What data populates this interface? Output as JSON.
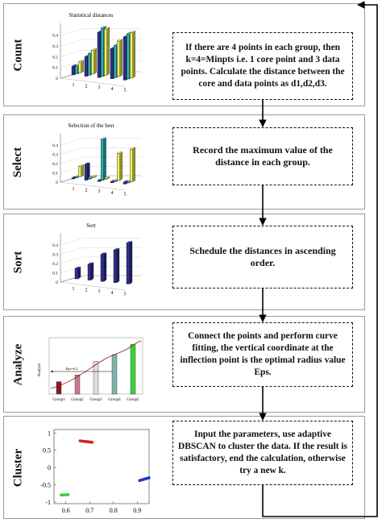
{
  "steps": [
    {
      "label": "Count",
      "chart_title": "Statistical distances",
      "text": "If there are 4 points in each group, then k=4=Minpts i.e. 1 core point and 3 data points. Calculate the distance between the core and data points as d1,d2,d3."
    },
    {
      "label": "Select",
      "chart_title": "Selection of the best",
      "text": "Record the maximum value of the distance in each group."
    },
    {
      "label": "Sort",
      "chart_title": "Sort",
      "text": "Schedule the distances in ascending order."
    },
    {
      "label": "Analyze",
      "text": "Connect the points and perform curve fitting, the vertical coordinate at the inflection point is the optimal radius value Eps."
    },
    {
      "label": "Cluster",
      "text": "Input the parameters, use adaptive DBSCAN to cluster the data. If the result is satisfactory, end the calculation, otherwise try a new k."
    }
  ],
  "colors": {
    "navy": "#2e2f8f",
    "cyan": "#2ab7b3",
    "yellow": "#f3f05a",
    "red": "#d62020",
    "green": "#36d23a",
    "blue": "#1f35c9",
    "curve": "#8b1a1a"
  },
  "chart_data": [
    {
      "type": "bar",
      "title": "Statistical distances",
      "categories": [
        "1",
        "2",
        "3",
        "4",
        "5"
      ],
      "series": [
        {
          "values": [
            0.08,
            0.18,
            0.42,
            0.28,
            0.4
          ]
        },
        {
          "values": [
            0.07,
            0.2,
            0.45,
            0.3,
            0.42
          ]
        },
        {
          "values": [
            0.1,
            0.22,
            0.43,
            0.33,
            0.42
          ]
        }
      ],
      "yticks": [
        "0",
        "0.1",
        "0.2",
        "0.3",
        "0.4"
      ],
      "ylim": [
        0,
        0.45
      ]
    },
    {
      "type": "bar",
      "title": "Selection of the best",
      "categories": [
        "1",
        "2",
        "3",
        "4",
        "5"
      ],
      "series": [
        {
          "values": [
            0.01,
            0.17,
            0.01,
            0.01,
            0.02
          ]
        },
        {
          "values": [
            0.01,
            0.01,
            0.44,
            0.01,
            0.01
          ]
        },
        {
          "values": [
            0.11,
            0.01,
            0.01,
            0.29,
            0.35
          ]
        }
      ],
      "yticks": [
        "0",
        "0.1",
        "0.2",
        "0.3",
        "0.4"
      ],
      "ylim": [
        0,
        0.45
      ]
    },
    {
      "type": "bar",
      "title": "Sort",
      "categories": [
        "1",
        "2",
        "3",
        "4",
        "5"
      ],
      "values": [
        0.11,
        0.17,
        0.29,
        0.35,
        0.44
      ],
      "yticks": [
        "0",
        "0.1",
        "0.2",
        "0.3",
        "0.4"
      ],
      "ylim": [
        0,
        0.45
      ]
    },
    {
      "type": "bar",
      "categories": [
        "Group1",
        "Group2",
        "Group3",
        "Group4",
        "Group5"
      ],
      "values": [
        0.11,
        0.17,
        0.29,
        0.35,
        0.44
      ],
      "ylabel": "Analyze",
      "annotation": "Eps=0.2",
      "eps": 0.2,
      "ylim": [
        0,
        0.5
      ]
    },
    {
      "type": "scatter",
      "xticks": [
        "0.6",
        "0.7",
        "0.8",
        "0.9"
      ],
      "yticks": [
        "1",
        "0.5",
        "0",
        "-0.5",
        "-1"
      ],
      "xlim": [
        0.55,
        0.95
      ],
      "ylim": [
        -1.05,
        1.1
      ],
      "series": [
        {
          "color": "red",
          "points": [
            [
              0.66,
              0.77
            ],
            [
              0.71,
              0.73
            ]
          ]
        },
        {
          "color": "green",
          "points": [
            [
              0.58,
              -0.8
            ],
            [
              0.61,
              -0.79
            ]
          ]
        },
        {
          "color": "blue",
          "points": [
            [
              0.91,
              -0.38
            ],
            [
              0.95,
              -0.3
            ]
          ]
        }
      ]
    }
  ]
}
